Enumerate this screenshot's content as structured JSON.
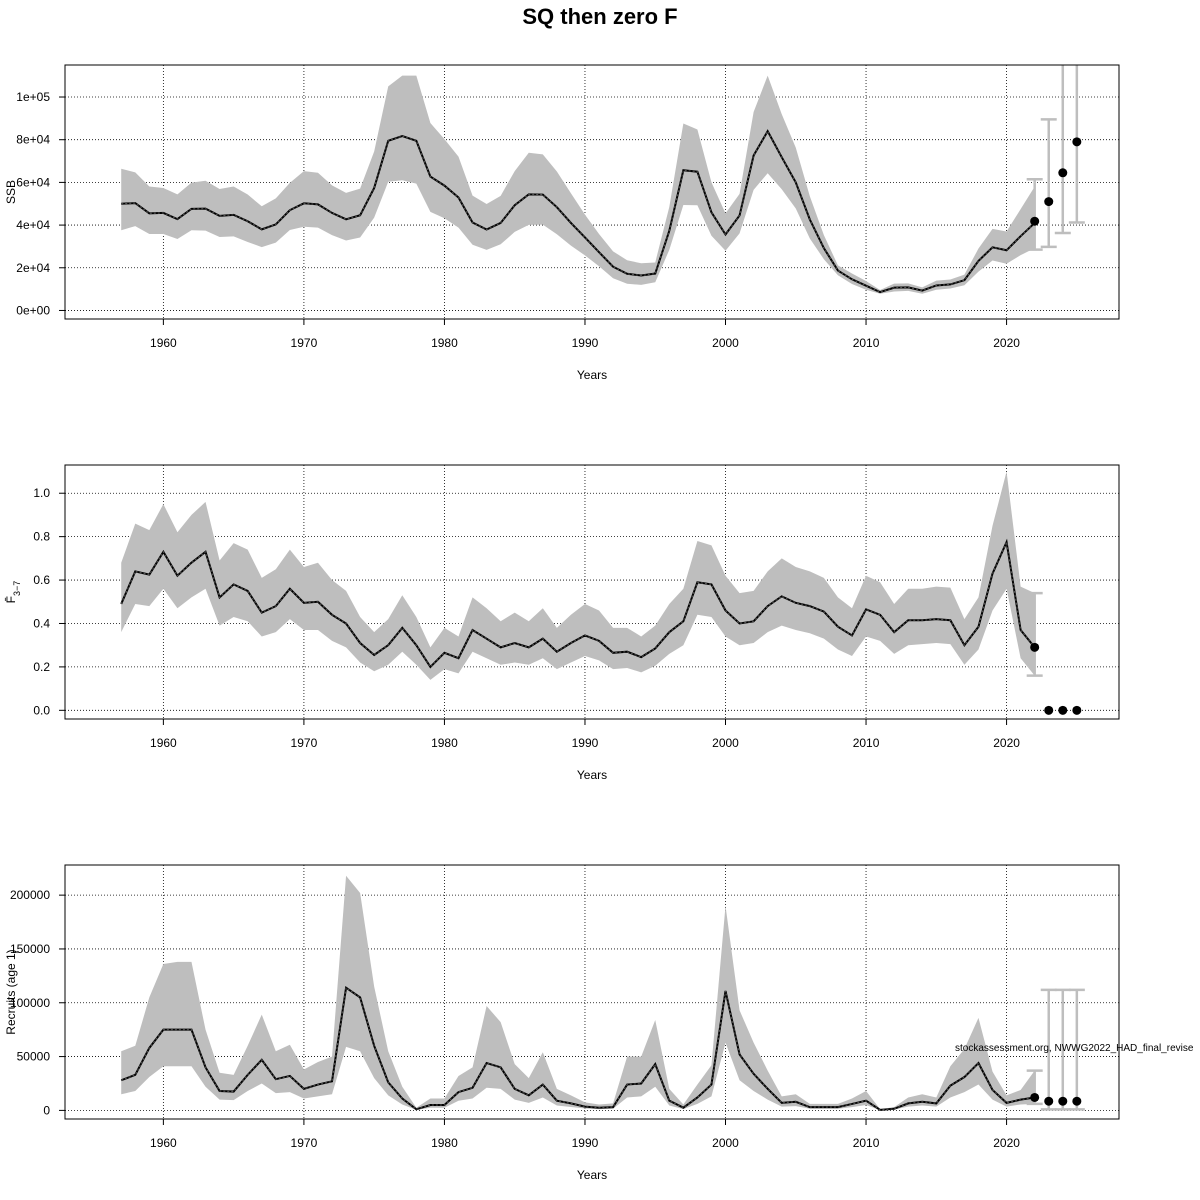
{
  "title": "SQ then zero F",
  "footnote": "stockassessment.org, NWWG2022_HAD_final_revise",
  "colors": {
    "band": "#bebebe",
    "line": "#000000",
    "grid": "#000000",
    "errorbar": "#bebebe",
    "point": "#000000"
  },
  "chart_data": [
    {
      "type": "line",
      "id": "ssb",
      "title": "",
      "xlabel": "Years",
      "ylabel": "SSB",
      "xlim": [
        1953,
        2028
      ],
      "ylim": [
        -4000,
        115000
      ],
      "x_ticks": [
        1960,
        1970,
        1980,
        1990,
        2000,
        2010,
        2020
      ],
      "y_ticks": [
        0,
        20000,
        40000,
        60000,
        80000,
        100000
      ],
      "y_tick_labels": [
        "0e+00",
        "2e+04",
        "4e+04",
        "6e+04",
        "8e+04",
        "1e+05"
      ],
      "grid": true,
      "x": [
        1957,
        1958,
        1959,
        1960,
        1961,
        1962,
        1963,
        1964,
        1965,
        1966,
        1967,
        1968,
        1969,
        1970,
        1971,
        1972,
        1973,
        1974,
        1975,
        1976,
        1977,
        1978,
        1979,
        1980,
        1981,
        1982,
        1983,
        1984,
        1985,
        1986,
        1987,
        1988,
        1989,
        1990,
        1991,
        1992,
        1993,
        1994,
        1995,
        1996,
        1997,
        1998,
        1999,
        2000,
        2001,
        2002,
        2003,
        2004,
        2005,
        2006,
        2007,
        2008,
        2009,
        2010,
        2011,
        2012,
        2013,
        2014,
        2015,
        2016,
        2017,
        2018,
        2019,
        2020,
        2021,
        2022
      ],
      "estimate": [
        50000,
        50300,
        45500,
        45700,
        42800,
        47600,
        47700,
        44300,
        44800,
        41800,
        38000,
        40300,
        47000,
        50200,
        49700,
        45700,
        42700,
        44600,
        57400,
        79500,
        81700,
        79500,
        62700,
        58500,
        52900,
        41200,
        37900,
        41000,
        49300,
        54400,
        54300,
        48400,
        41000,
        34200,
        27300,
        20500,
        17200,
        16400,
        17300,
        37300,
        65700,
        65000,
        46000,
        35600,
        44500,
        72600,
        84000,
        71800,
        60000,
        42600,
        29200,
        18700,
        14600,
        11600,
        8600,
        10700,
        10800,
        9300,
        11700,
        12200,
        14200,
        23200,
        29600,
        28200,
        34800,
        41000
      ],
      "lower": [
        37600,
        39500,
        35800,
        35800,
        33500,
        37600,
        37400,
        34400,
        34700,
        32100,
        29700,
        31800,
        37700,
        39200,
        38800,
        35300,
        32800,
        34200,
        43500,
        60300,
        61000,
        59400,
        46200,
        43200,
        38800,
        30800,
        28400,
        31000,
        36800,
        40100,
        40200,
        35700,
        30400,
        25800,
        20700,
        15100,
        12500,
        12000,
        13200,
        28400,
        49400,
        49300,
        35000,
        28000,
        36100,
        56500,
        64300,
        56800,
        47800,
        33700,
        24000,
        16500,
        12400,
        9700,
        7800,
        8900,
        9200,
        7800,
        9700,
        10300,
        11800,
        18200,
        23400,
        21900,
        25900,
        29200
      ],
      "upper": [
        66400,
        64700,
        58100,
        57400,
        54400,
        59900,
        60800,
        56900,
        58100,
        54300,
        48800,
        52500,
        59800,
        65300,
        64500,
        58600,
        55100,
        57100,
        74500,
        105000,
        110000,
        110000,
        87800,
        80300,
        72100,
        53800,
        49900,
        53700,
        65300,
        73900,
        73100,
        65100,
        54900,
        44900,
        35800,
        27700,
        23500,
        22100,
        22500,
        48500,
        87600,
        84800,
        60000,
        45500,
        54600,
        93000,
        110000,
        92000,
        76300,
        53500,
        35300,
        21100,
        17300,
        13800,
        9600,
        12600,
        12700,
        10800,
        14000,
        14500,
        16800,
        29000,
        38200,
        37000,
        47500,
        58000
      ],
      "projection": {
        "x": [
          2022,
          2023,
          2024,
          2025
        ],
        "median": [
          41800,
          51000,
          64500,
          79000
        ],
        "lower": [
          28500,
          29800,
          36300,
          41200
        ],
        "upper": [
          61500,
          89500,
          120000,
          120000
        ]
      }
    },
    {
      "type": "line",
      "id": "fbar",
      "title": "",
      "xlabel": "Years",
      "ylabel": "F̄",
      "ylabel_subscript": "3−7",
      "xlim": [
        1953,
        2028
      ],
      "ylim": [
        -0.04,
        1.13
      ],
      "x_ticks": [
        1960,
        1970,
        1980,
        1990,
        2000,
        2010,
        2020
      ],
      "y_ticks": [
        0,
        0.2,
        0.4,
        0.6,
        0.8,
        1.0
      ],
      "y_tick_labels": [
        "0.0",
        "0.2",
        "0.4",
        "0.6",
        "0.8",
        "1.0"
      ],
      "grid": true,
      "x": [
        1957,
        1958,
        1959,
        1960,
        1961,
        1962,
        1963,
        1964,
        1965,
        1966,
        1967,
        1968,
        1969,
        1970,
        1971,
        1972,
        1973,
        1974,
        1975,
        1976,
        1977,
        1978,
        1979,
        1980,
        1981,
        1982,
        1983,
        1984,
        1985,
        1986,
        1987,
        1988,
        1989,
        1990,
        1991,
        1992,
        1993,
        1994,
        1995,
        1996,
        1997,
        1998,
        1999,
        2000,
        2001,
        2002,
        2003,
        2004,
        2005,
        2006,
        2007,
        2008,
        2009,
        2010,
        2011,
        2012,
        2013,
        2014,
        2015,
        2016,
        2017,
        2018,
        2019,
        2020,
        2021,
        2022
      ],
      "estimate": [
        0.49,
        0.64,
        0.625,
        0.73,
        0.62,
        0.68,
        0.73,
        0.52,
        0.58,
        0.55,
        0.45,
        0.48,
        0.56,
        0.495,
        0.5,
        0.44,
        0.4,
        0.31,
        0.255,
        0.3,
        0.38,
        0.3,
        0.2,
        0.265,
        0.24,
        0.37,
        0.33,
        0.29,
        0.31,
        0.29,
        0.33,
        0.27,
        0.31,
        0.345,
        0.32,
        0.265,
        0.27,
        0.245,
        0.285,
        0.36,
        0.41,
        0.59,
        0.58,
        0.46,
        0.4,
        0.41,
        0.48,
        0.525,
        0.495,
        0.48,
        0.455,
        0.385,
        0.345,
        0.465,
        0.44,
        0.36,
        0.415,
        0.415,
        0.42,
        0.415,
        0.3,
        0.385,
        0.63,
        0.775,
        0.37,
        0.29
      ],
      "lower": [
        0.36,
        0.49,
        0.48,
        0.56,
        0.47,
        0.52,
        0.56,
        0.39,
        0.43,
        0.41,
        0.34,
        0.36,
        0.42,
        0.37,
        0.37,
        0.32,
        0.29,
        0.22,
        0.18,
        0.21,
        0.27,
        0.21,
        0.14,
        0.19,
        0.17,
        0.27,
        0.24,
        0.21,
        0.22,
        0.21,
        0.24,
        0.19,
        0.22,
        0.25,
        0.23,
        0.19,
        0.195,
        0.175,
        0.205,
        0.26,
        0.3,
        0.44,
        0.43,
        0.34,
        0.3,
        0.31,
        0.36,
        0.39,
        0.37,
        0.355,
        0.33,
        0.28,
        0.25,
        0.34,
        0.32,
        0.26,
        0.3,
        0.305,
        0.31,
        0.305,
        0.21,
        0.28,
        0.46,
        0.56,
        0.24,
        0.16
      ],
      "upper": [
        0.68,
        0.86,
        0.83,
        0.95,
        0.82,
        0.9,
        0.96,
        0.69,
        0.77,
        0.74,
        0.61,
        0.65,
        0.74,
        0.66,
        0.68,
        0.6,
        0.55,
        0.43,
        0.36,
        0.42,
        0.53,
        0.43,
        0.29,
        0.38,
        0.34,
        0.52,
        0.47,
        0.41,
        0.45,
        0.41,
        0.47,
        0.38,
        0.44,
        0.49,
        0.46,
        0.38,
        0.38,
        0.34,
        0.39,
        0.49,
        0.56,
        0.78,
        0.76,
        0.62,
        0.54,
        0.55,
        0.64,
        0.7,
        0.66,
        0.64,
        0.61,
        0.52,
        0.47,
        0.62,
        0.59,
        0.49,
        0.56,
        0.56,
        0.57,
        0.565,
        0.42,
        0.52,
        0.85,
        1.1,
        0.57,
        0.54
      ],
      "projection": {
        "x": [
          2022,
          2023,
          2024,
          2025
        ],
        "median": [
          0.29,
          0.0,
          0.0,
          0.0
        ],
        "lower": [
          0.16,
          0.0,
          0.0,
          0.0
        ],
        "upper": [
          0.54,
          0.0,
          0.0,
          0.0
        ]
      }
    },
    {
      "type": "line",
      "id": "recruits",
      "title": "",
      "xlabel": "Years",
      "ylabel": "Recruits (age 1)",
      "xlim": [
        1953,
        2028
      ],
      "ylim": [
        -8000,
        228000
      ],
      "x_ticks": [
        1960,
        1970,
        1980,
        1990,
        2000,
        2010,
        2020
      ],
      "y_ticks": [
        0,
        50000,
        100000,
        150000,
        200000
      ],
      "y_tick_labels": [
        "0",
        "50000",
        "100000",
        "150000",
        "200000"
      ],
      "grid": true,
      "x": [
        1957,
        1958,
        1959,
        1960,
        1961,
        1962,
        1963,
        1964,
        1965,
        1966,
        1967,
        1968,
        1969,
        1970,
        1971,
        1972,
        1973,
        1974,
        1975,
        1976,
        1977,
        1978,
        1979,
        1980,
        1981,
        1982,
        1983,
        1984,
        1985,
        1986,
        1987,
        1988,
        1989,
        1990,
        1991,
        1992,
        1993,
        1994,
        1995,
        1996,
        1997,
        1998,
        1999,
        2000,
        2001,
        2002,
        2003,
        2004,
        2005,
        2006,
        2007,
        2008,
        2009,
        2010,
        2011,
        2012,
        2013,
        2014,
        2015,
        2016,
        2017,
        2018,
        2019,
        2020,
        2021,
        2022
      ],
      "estimate": [
        28000,
        33000,
        58000,
        75000,
        75000,
        75000,
        40000,
        18000,
        17500,
        33000,
        47000,
        29000,
        32000,
        20000,
        24000,
        27000,
        114000,
        105000,
        60000,
        26000,
        11000,
        1000,
        5000,
        5000,
        17000,
        21000,
        44000,
        40000,
        20000,
        14000,
        24000,
        9000,
        6500,
        3500,
        2500,
        3000,
        24000,
        25000,
        43000,
        9000,
        2500,
        12000,
        24000,
        111000,
        52000,
        34000,
        20000,
        7000,
        8000,
        3000,
        3000,
        3000,
        6000,
        9000,
        500,
        1500,
        6500,
        8000,
        6500,
        23000,
        31000,
        44000,
        19000,
        7000,
        10000,
        12000
      ],
      "lower": [
        15000,
        18000,
        31000,
        41000,
        41000,
        41000,
        22000,
        10000,
        9500,
        18000,
        25000,
        16000,
        17000,
        11000,
        13000,
        15000,
        59000,
        55000,
        30000,
        14000,
        5500,
        500,
        2500,
        2500,
        9000,
        11000,
        21000,
        20000,
        10000,
        7000,
        12000,
        4500,
        3200,
        1800,
        1200,
        1500,
        12000,
        13000,
        22000,
        4500,
        1200,
        6000,
        13000,
        63000,
        28000,
        18000,
        10000,
        3500,
        4000,
        1500,
        1500,
        1500,
        3000,
        5000,
        300,
        800,
        3500,
        4500,
        3500,
        12000,
        17000,
        24000,
        10000,
        3500,
        5500,
        6000
      ],
      "upper": [
        55000,
        60000,
        105000,
        136000,
        138000,
        138000,
        75000,
        35000,
        33000,
        60000,
        89000,
        55000,
        61000,
        38000,
        45000,
        50000,
        218000,
        202000,
        115000,
        55000,
        22000,
        2500,
        11000,
        11000,
        32000,
        40000,
        97000,
        82000,
        43000,
        30000,
        54000,
        20000,
        14000,
        7500,
        5500,
        6500,
        50000,
        50000,
        84000,
        20000,
        5500,
        24000,
        42000,
        190000,
        93000,
        63000,
        37000,
        13000,
        15000,
        6000,
        6000,
        6000,
        11000,
        18000,
        1200,
        3000,
        12000,
        15000,
        12000,
        41000,
        57000,
        86000,
        36000,
        14000,
        19000,
        37000
      ],
      "projection": {
        "x": [
          2022,
          2023,
          2024,
          2025
        ],
        "median": [
          12000,
          8500,
          8500,
          8500
        ],
        "lower": [
          6000,
          1000,
          1000,
          1000
        ],
        "upper": [
          37000,
          112000,
          112000,
          112000
        ]
      }
    }
  ]
}
